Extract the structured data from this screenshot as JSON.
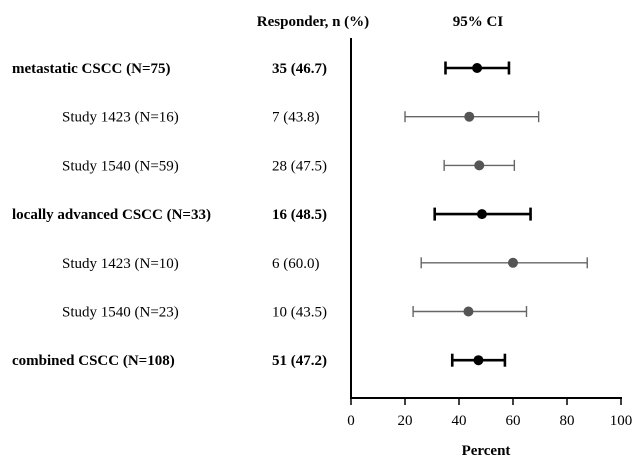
{
  "chart_data": {
    "type": "forest",
    "headers": {
      "responder": "Responder, n (%)",
      "ci": "95% CI"
    },
    "rows": [
      {
        "label": "metastatic CSCC (N=75)",
        "value_text": "35 (46.7)",
        "estimate": 46.7,
        "ci": [
          35,
          58.5
        ],
        "bold": true,
        "indent": false
      },
      {
        "label": "Study 1423 (N=16)",
        "value_text": "7 (43.8)",
        "estimate": 43.8,
        "ci": [
          20,
          69.5
        ],
        "bold": false,
        "indent": true
      },
      {
        "label": "Study 1540 (N=59)",
        "value_text": "28 (47.5)",
        "estimate": 47.5,
        "ci": [
          34.5,
          60.5
        ],
        "bold": false,
        "indent": true
      },
      {
        "label": "locally advanced CSCC (N=33)",
        "value_text": "16 (48.5)",
        "estimate": 48.5,
        "ci": [
          31,
          66.5
        ],
        "bold": true,
        "indent": false
      },
      {
        "label": "Study 1423 (N=10)",
        "value_text": "6 (60.0)",
        "estimate": 60.0,
        "ci": [
          26,
          87.5
        ],
        "bold": false,
        "indent": true
      },
      {
        "label": "Study 1540 (N=23)",
        "value_text": "10 (43.5)",
        "estimate": 43.5,
        "ci": [
          23,
          65
        ],
        "bold": false,
        "indent": true
      },
      {
        "label": "combined CSCC (N=108)",
        "value_text": "51 (47.2)",
        "estimate": 47.2,
        "ci": [
          37.5,
          57
        ],
        "bold": true,
        "indent": false
      }
    ],
    "xlabel": "Percent",
    "xlim": [
      0,
      100
    ],
    "xticks": [
      0,
      20,
      40,
      60,
      80,
      100
    ],
    "colors": {
      "overall": "#000000",
      "study": "#666666",
      "axis": "#000000"
    }
  }
}
